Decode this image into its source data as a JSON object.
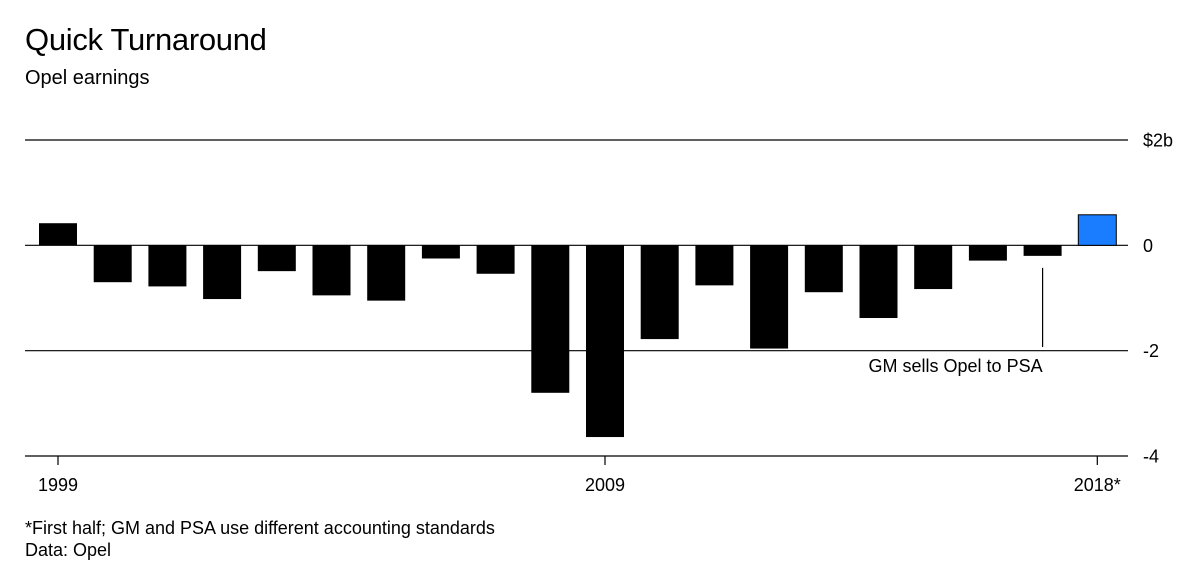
{
  "title": "Quick Turnaround",
  "subtitle": "Opel earnings",
  "footnote": "*First half; GM and PSA use different accounting standards",
  "source": "Data: Opel",
  "colors": {
    "negative": "#000000",
    "positive_past": "#000000",
    "highlight": "#1a7cff"
  },
  "chart_data": {
    "type": "bar",
    "title": "Quick Turnaround",
    "subtitle": "Opel earnings",
    "categories": [
      "1999",
      "2000",
      "2001",
      "2002",
      "2003",
      "2004",
      "2005",
      "2006",
      "2007",
      "2008",
      "2009",
      "2010",
      "2011",
      "2012",
      "2013",
      "2014",
      "2015",
      "2016",
      "2017",
      "2018*"
    ],
    "values": [
      0.42,
      -0.7,
      -0.78,
      -1.02,
      -0.49,
      -0.95,
      -1.05,
      -0.25,
      -0.54,
      -2.8,
      -3.64,
      -1.78,
      -0.76,
      -1.96,
      -0.89,
      -1.38,
      -0.83,
      -0.29,
      -0.2,
      0.58
    ],
    "x_tick_labels": [
      "1999",
      "2009",
      "2018*"
    ],
    "y_ticks": [
      {
        "value": 2,
        "label": "$2b"
      },
      {
        "value": 0,
        "label": "0"
      },
      {
        "value": -2,
        "label": "-2"
      },
      {
        "value": -4,
        "label": "-4"
      }
    ],
    "ylim": [
      -4,
      2
    ],
    "grid": true,
    "highlight_category": "2018*",
    "annotation": {
      "category": "2017",
      "text": "GM sells Opel to PSA"
    }
  }
}
